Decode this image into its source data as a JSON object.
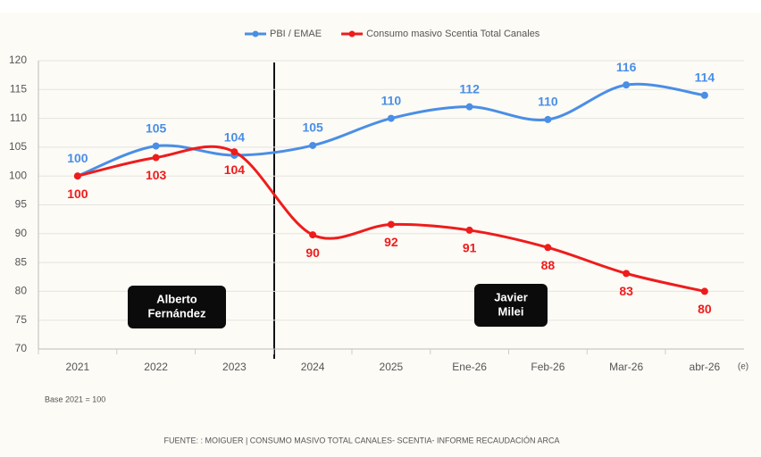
{
  "chart_data": {
    "type": "line",
    "categories": [
      "2021",
      "2022",
      "2023",
      "2024",
      "2025",
      "Ene-26",
      "Feb-26",
      "Mar-26",
      "abr-26"
    ],
    "series": [
      {
        "name": "PBI / EMAE",
        "color": "#4a8ee6",
        "values": [
          100,
          105.2,
          103.6,
          105.3,
          110,
          112,
          109.8,
          115.8,
          114
        ],
        "value_labels": [
          "100",
          "105",
          "104",
          "105",
          "110",
          "112",
          "110",
          "116",
          "114"
        ]
      },
      {
        "name": "Consumo masivo Scentia Total Canales",
        "color": "#ee1c1c",
        "values": [
          100,
          103.2,
          104.2,
          89.8,
          91.6,
          90.6,
          87.6,
          83.1,
          80
        ],
        "value_labels": [
          "100",
          "103",
          "104",
          "90",
          "92",
          "91",
          "88",
          "83",
          "80"
        ]
      }
    ],
    "ylim": [
      70,
      120
    ],
    "yticks": [
      70,
      75,
      80,
      85,
      90,
      95,
      100,
      105,
      110,
      115,
      120
    ],
    "grid": true,
    "legend": "top",
    "x_note": "(e)",
    "annotations": [
      {
        "lines": [
          "Alberto",
          "Fernández"
        ]
      },
      {
        "lines": [
          "Javier",
          "Milei"
        ]
      }
    ],
    "base_note": "Base 2021 = 100",
    "source": "FUENTE: : MOIGUER | CONSUMO MASIVO TOTAL CANALES- SCENTIA- INFORME RECAUDACIÓN ARCA"
  }
}
